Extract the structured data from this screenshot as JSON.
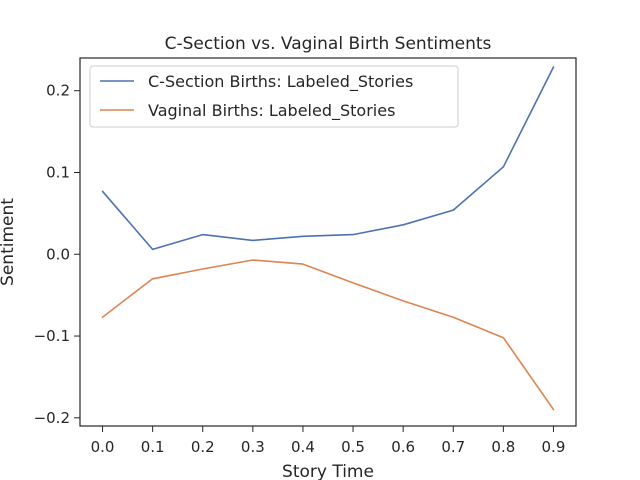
{
  "chart_data": {
    "type": "line",
    "title": "C-Section vs. Vaginal Birth Sentiments",
    "xlabel": "Story Time",
    "ylabel": "Sentiment",
    "x": [
      0.0,
      0.1,
      0.2,
      0.3,
      0.4,
      0.5,
      0.6,
      0.7,
      0.8,
      0.9
    ],
    "xlim": [
      -0.045,
      0.945
    ],
    "ylim": [
      -0.21,
      0.24
    ],
    "xticks": [
      0.0,
      0.1,
      0.2,
      0.3,
      0.4,
      0.5,
      0.6,
      0.7,
      0.8,
      0.9
    ],
    "xtick_labels": [
      "0.0",
      "0.1",
      "0.2",
      "0.3",
      "0.4",
      "0.5",
      "0.6",
      "0.7",
      "0.8",
      "0.9"
    ],
    "yticks": [
      0.2,
      0.1,
      0.0,
      -0.1,
      -0.2
    ],
    "ytick_labels": [
      "0.2",
      "0.1",
      "0.0",
      "−0.1",
      "−0.2"
    ],
    "grid": false,
    "legend_position": "top-left",
    "series": [
      {
        "name": "C-Section Births: Labeled_Stories",
        "color": "#4c72b0",
        "values": [
          0.077,
          0.006,
          0.024,
          0.017,
          0.022,
          0.024,
          0.036,
          0.054,
          0.107,
          0.229
        ]
      },
      {
        "name": "Vaginal Births: Labeled_Stories",
        "color": "#dd8452",
        "values": [
          -0.077,
          -0.03,
          -0.018,
          -0.007,
          -0.012,
          -0.035,
          -0.057,
          -0.077,
          -0.102,
          -0.19
        ]
      }
    ]
  }
}
